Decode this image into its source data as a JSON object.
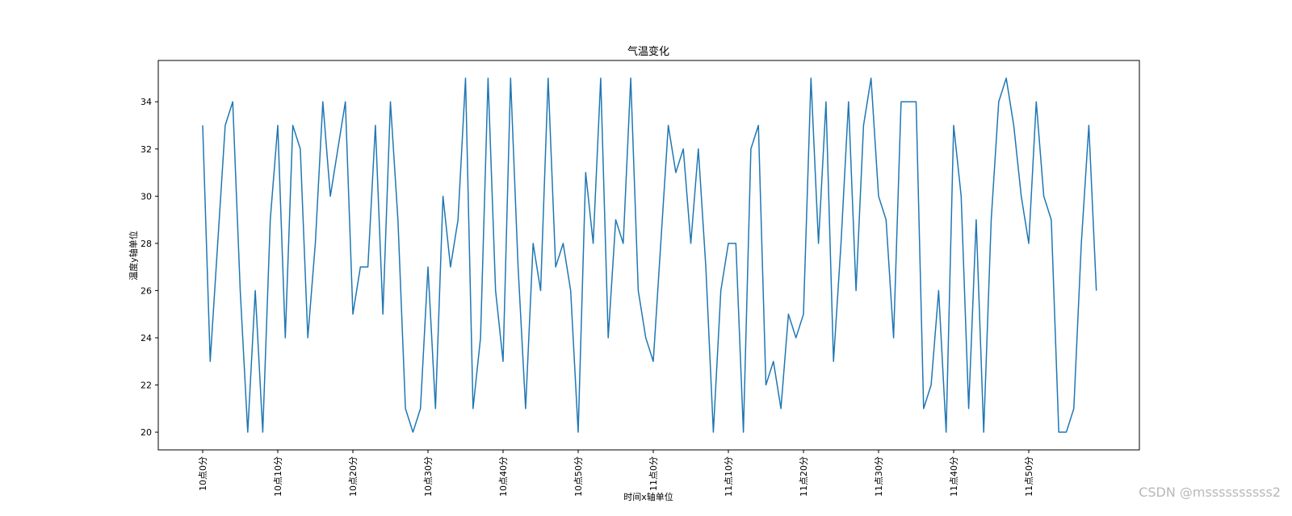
{
  "chart_data": {
    "type": "line",
    "title": "气温变化",
    "xlabel": "时间x轴单位",
    "ylabel": "温度y轴单位",
    "ylim": [
      19.25,
      35.75
    ],
    "yticks": [
      20,
      22,
      24,
      26,
      28,
      30,
      32,
      34
    ],
    "grid": false,
    "x_tick_labels": [
      "10点0分",
      "10点10分",
      "10点20分",
      "10点30分",
      "10点40分",
      "10点50分",
      "11点0分",
      "11点10分",
      "11点20分",
      "11点30分",
      "11点40分",
      "11点50分"
    ],
    "x_tick_every": 10,
    "series": [
      {
        "color": "#1f77b4",
        "values": [
          33,
          23,
          28,
          33,
          34,
          26,
          20,
          26,
          20,
          29,
          33,
          24,
          33,
          32,
          24,
          28,
          34,
          30,
          32,
          34,
          25,
          27,
          27,
          33,
          25,
          34,
          29,
          21,
          20,
          21,
          27,
          21,
          30,
          27,
          29,
          35,
          21,
          24,
          35,
          26,
          23,
          35,
          27,
          21,
          28,
          26,
          35,
          27,
          28,
          26,
          20,
          31,
          28,
          35,
          24,
          29,
          28,
          35,
          26,
          24,
          23,
          28,
          33,
          31,
          32,
          28,
          32,
          27,
          20,
          26,
          28,
          28,
          20,
          32,
          33,
          22,
          23,
          21,
          25,
          24,
          25,
          35,
          28,
          34,
          23,
          28,
          34,
          26,
          33,
          35,
          30,
          29,
          24,
          34,
          34,
          34,
          21,
          22,
          26,
          20,
          33,
          30,
          21,
          29,
          20,
          29,
          34,
          35,
          33,
          30,
          28,
          34,
          30,
          29,
          20,
          20,
          21,
          28,
          33,
          26
        ]
      }
    ]
  },
  "watermark": "CSDN @mssssssssss2"
}
